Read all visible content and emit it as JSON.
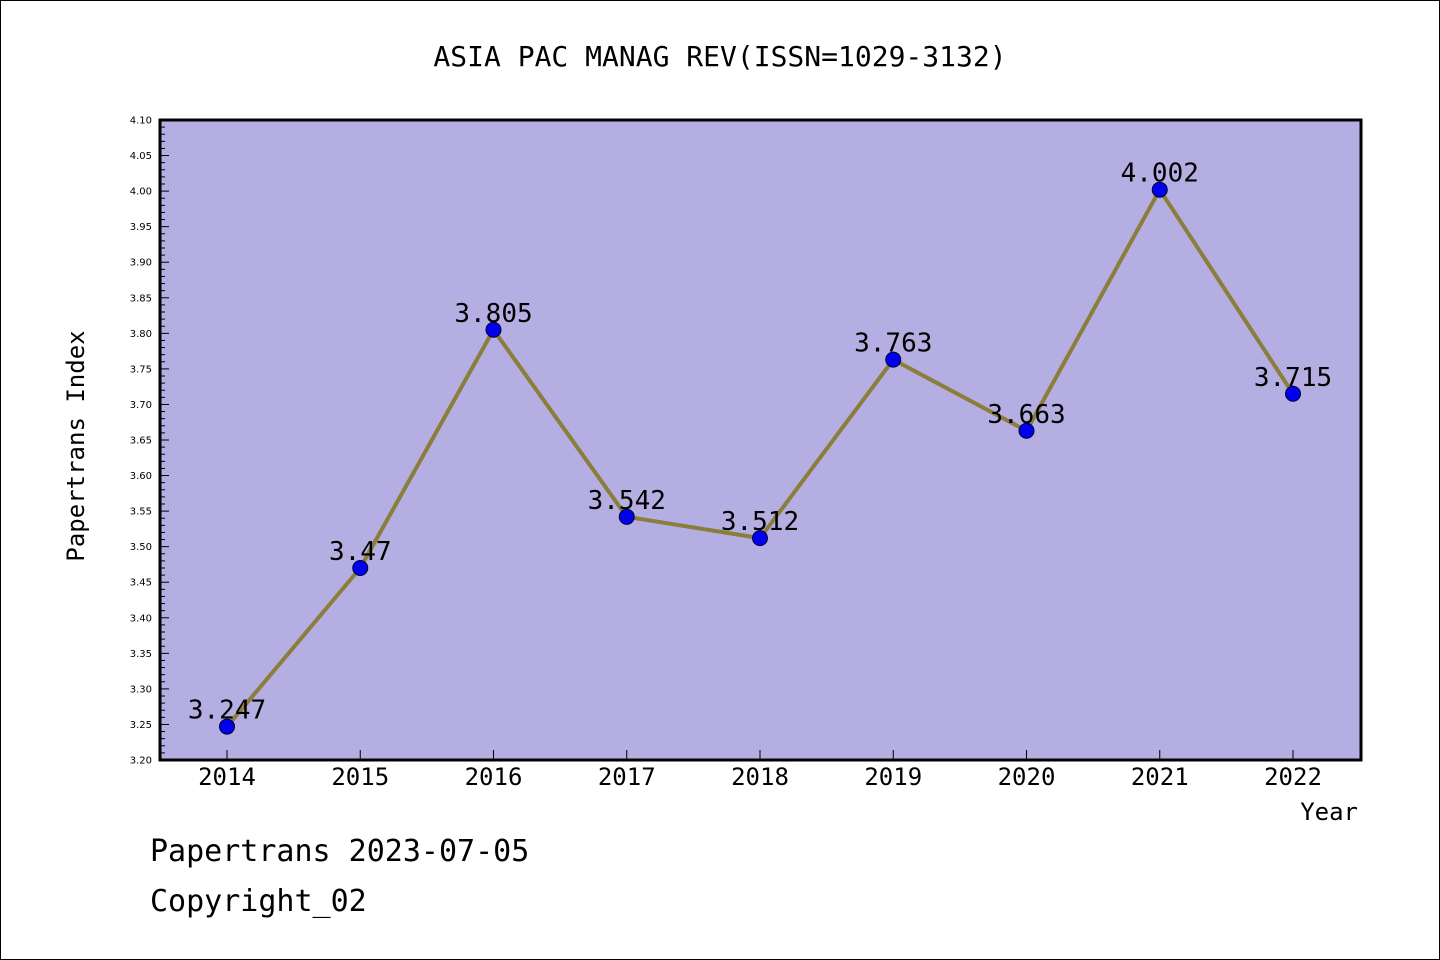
{
  "chart_data": {
    "type": "line",
    "title": "ASIA PAC MANAG REV(ISSN=1029-3132)",
    "xlabel": "Year",
    "ylabel": "Papertrans Index",
    "categories": [
      "2014",
      "2015",
      "2016",
      "2017",
      "2018",
      "2019",
      "2020",
      "2021",
      "2022"
    ],
    "values": [
      3.247,
      3.47,
      3.805,
      3.542,
      3.512,
      3.763,
      3.663,
      4.002,
      3.715
    ],
    "value_labels": [
      "3.247",
      "3.47",
      "3.805",
      "3.542",
      "3.512",
      "3.763",
      "3.663",
      "4.002",
      "3.715"
    ],
    "ylim": [
      3.2,
      4.1
    ],
    "yticks": [
      "3.20",
      "3.25",
      "3.30",
      "3.35",
      "3.40",
      "3.45",
      "3.50",
      "3.55",
      "3.60",
      "3.65",
      "3.70",
      "3.75",
      "3.80",
      "3.85",
      "3.90",
      "3.95",
      "4.00",
      "4.05",
      "4.10"
    ],
    "grid": false,
    "colors": {
      "plot_background": "#b4aee2",
      "line": "#8b7d3a",
      "marker": "#0000ee"
    }
  },
  "footer": {
    "line1": "Papertrans 2023-07-05",
    "line2": "Copyright_02"
  }
}
